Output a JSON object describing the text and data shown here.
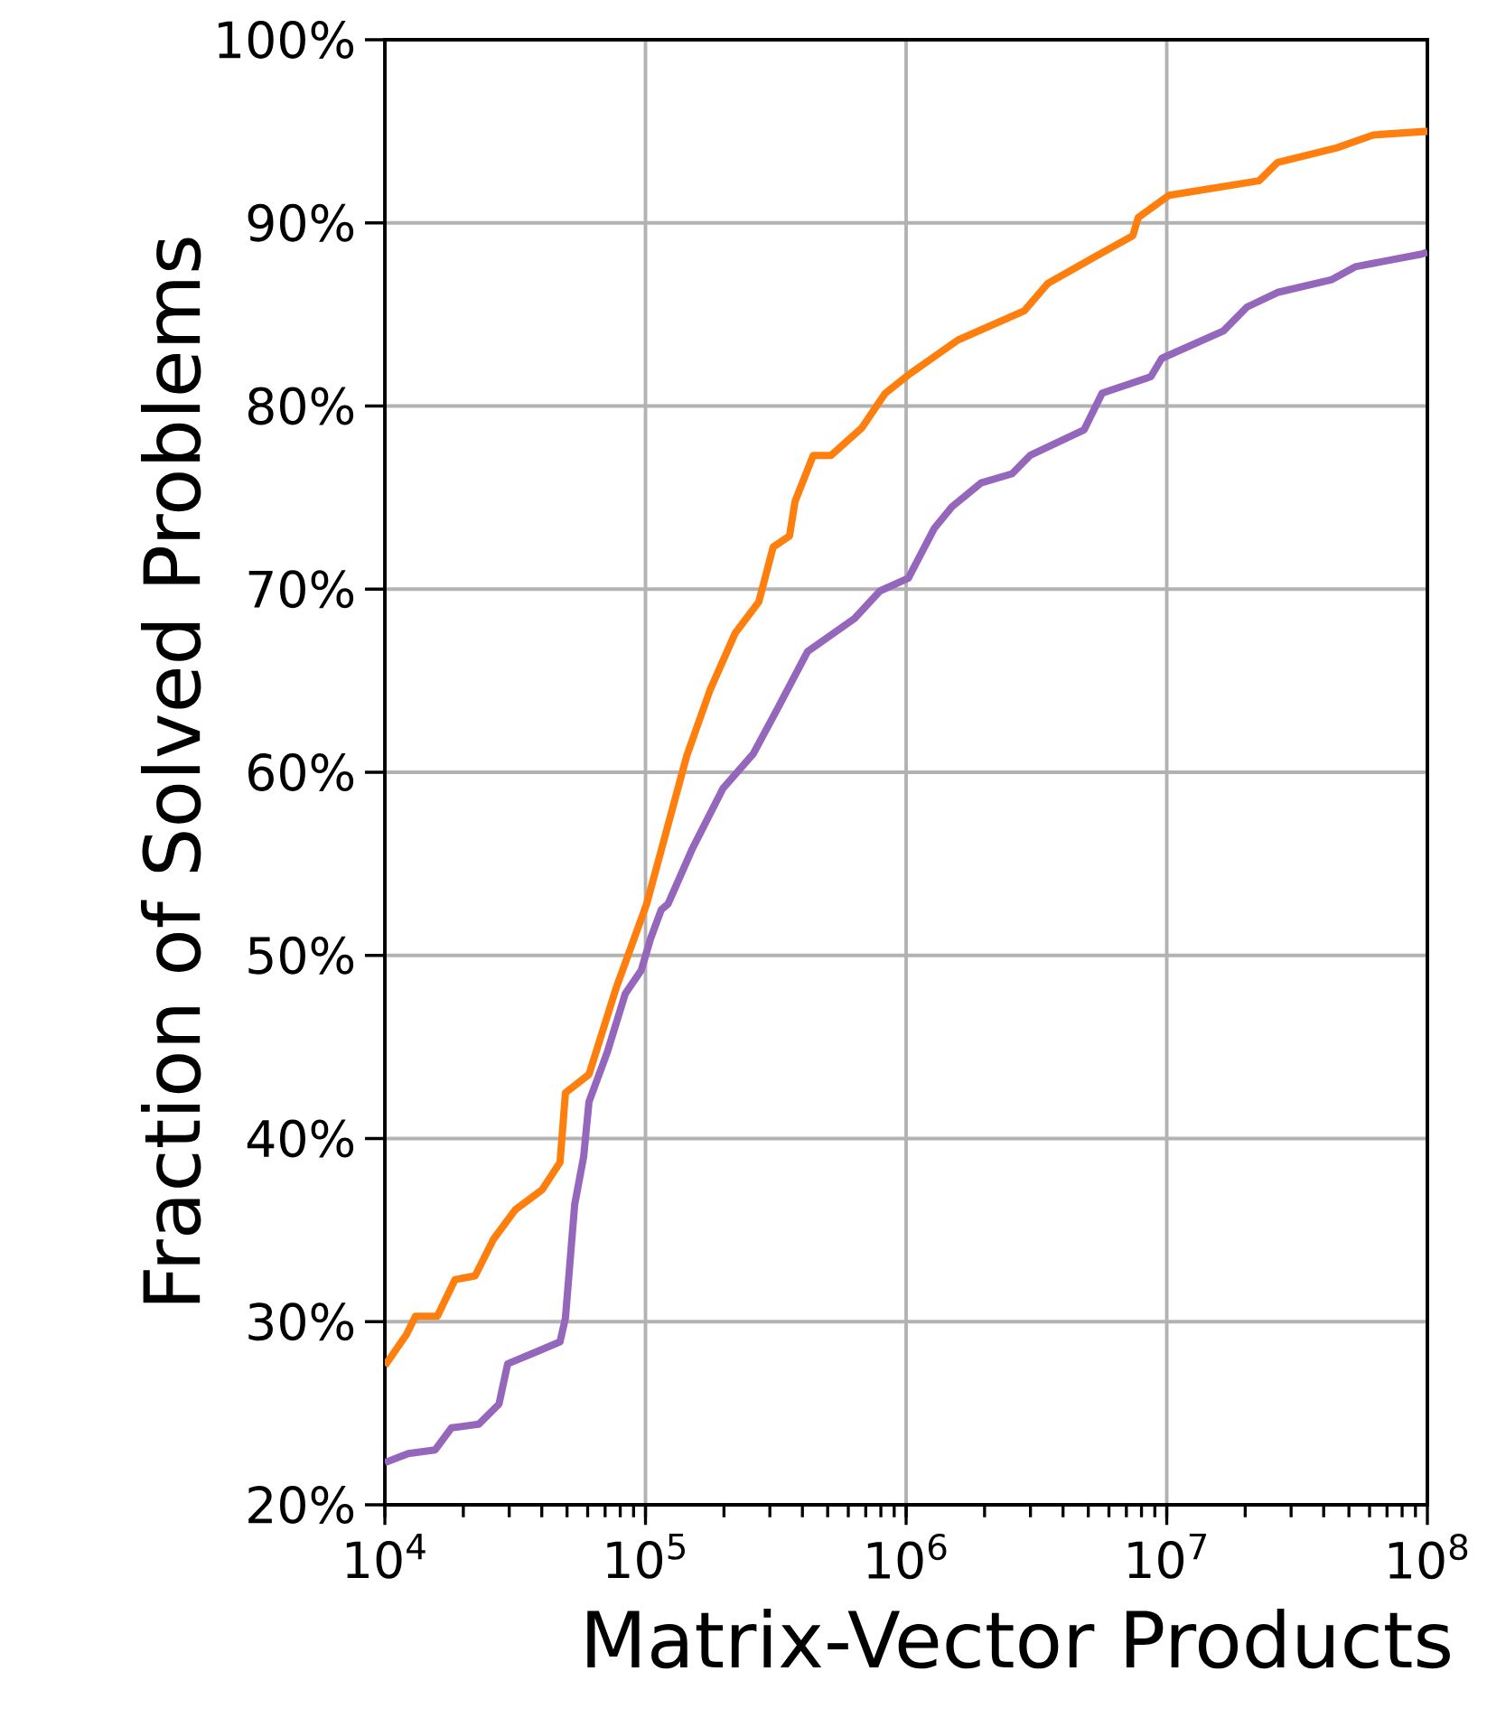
{
  "chart_data": {
    "type": "line",
    "xlabel": "Matrix-Vector Products",
    "ylabel": "Fraction of Solved Problems",
    "log": "x",
    "grid": true,
    "marker": "none",
    "line_style": "solid",
    "xlim": [
      10000,
      100000000
    ],
    "ylim": [
      20,
      100
    ],
    "xticks": [
      {
        "value": 10000,
        "label": "10$^{4}$"
      },
      {
        "value": 100000,
        "label": "10$^{5}$"
      },
      {
        "value": 1000000,
        "label": "10$^{6}$"
      },
      {
        "value": 10000000,
        "label": "10$^{7}$"
      },
      {
        "value": 100000000,
        "label": "10$^{8}$"
      }
    ],
    "yticks": [
      {
        "value": 20,
        "label": "20%"
      },
      {
        "value": 30,
        "label": "30%"
      },
      {
        "value": 40,
        "label": "40%"
      },
      {
        "value": 50,
        "label": "50%"
      },
      {
        "value": 60,
        "label": "60%"
      },
      {
        "value": 70,
        "label": "70%"
      },
      {
        "value": 80,
        "label": "80%"
      },
      {
        "value": 90,
        "label": "90%"
      },
      {
        "value": 100,
        "label": "100%"
      }
    ],
    "series": [
      {
        "color": "#ff7f0e",
        "x": [
          10000,
          12100,
          13100,
          15900,
          18600,
          22200,
          26100,
          31600,
          40100,
          47000,
          49300,
          60700,
          77100,
          101000,
          144000,
          177000,
          221000,
          272000,
          309000,
          357000,
          375000,
          440000,
          515000,
          676000,
          832000,
          1020000,
          1580000,
          2840000,
          3500000,
          5380000,
          7410000,
          7780000,
          10200000,
          22600000,
          26600000,
          45000000,
          61900000,
          100000000
        ],
        "values": [
          27.6,
          29.3,
          30.3,
          30.3,
          32.3,
          32.5,
          34.5,
          36.1,
          37.2,
          38.7,
          42.5,
          43.5,
          48.2,
          52.8,
          60.9,
          64.5,
          67.6,
          69.3,
          72.3,
          72.9,
          74.8,
          77.3,
          77.3,
          78.8,
          80.7,
          81.7,
          83.6,
          85.2,
          86.7,
          88.2,
          89.3,
          90.3,
          91.5,
          92.3,
          93.3,
          94.1,
          94.8,
          95.0
        ]
      },
      {
        "color": "#9467bd",
        "x": [
          10000,
          12300,
          15600,
          18000,
          22900,
          27400,
          29600,
          38800,
          47000,
          49300,
          53500,
          57900,
          60700,
          71300,
          83600,
          96400,
          104500,
          115000,
          122000,
          151000,
          198000,
          259000,
          319000,
          419000,
          634000,
          794000,
          1020000,
          1280000,
          1500000,
          1940000,
          2550000,
          2990000,
          4820000,
          5650000,
          8690000,
          9570000,
          16500000,
          20300000,
          26600000,
          43000000,
          52800000,
          95300000,
          100000000
        ],
        "values": [
          22.3,
          22.8,
          23.0,
          24.2,
          24.4,
          25.5,
          27.7,
          28.4,
          28.9,
          30.2,
          36.4,
          39.0,
          42.0,
          44.7,
          47.9,
          49.2,
          50.9,
          52.5,
          52.8,
          55.8,
          59.1,
          61.0,
          63.4,
          66.6,
          68.4,
          69.9,
          70.6,
          73.3,
          74.5,
          75.8,
          76.3,
          77.3,
          78.7,
          80.7,
          81.6,
          82.6,
          84.1,
          85.4,
          86.2,
          86.9,
          87.6,
          88.3,
          88.4
        ]
      }
    ]
  }
}
